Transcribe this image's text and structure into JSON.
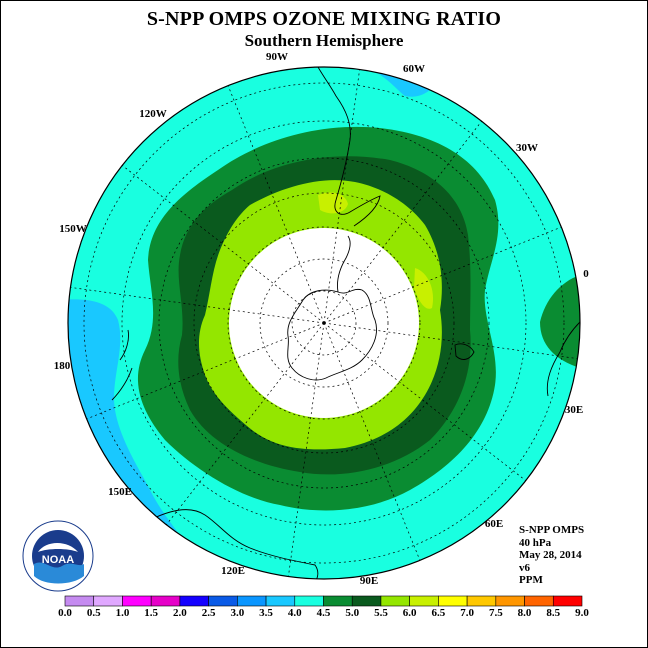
{
  "title": "S-NPP OMPS OZONE MIXING RATIO",
  "subtitle": "Southern Hemisphere",
  "logo": {
    "text": "NOAA",
    "icon": "noaa-seal-icon"
  },
  "info": {
    "instrument": "S-NPP OMPS",
    "level": "40 hPa",
    "date": "May 28, 2014",
    "version": "v6",
    "units": "PPM"
  },
  "lon_labels": [
    "0",
    "30E",
    "60E",
    "90E",
    "120E",
    "150E",
    "180",
    "150W",
    "120W",
    "90W",
    "60W",
    "30W"
  ],
  "colorbar": {
    "ticks": [
      "0.0",
      "0.5",
      "1.0",
      "1.5",
      "2.0",
      "2.5",
      "3.0",
      "3.5",
      "4.0",
      "4.5",
      "5.0",
      "5.5",
      "6.0",
      "6.5",
      "7.0",
      "7.5",
      "8.0",
      "8.5",
      "9.0"
    ],
    "colors": [
      "#c58bf0",
      "#e0a8ff",
      "#ff00ff",
      "#e600c8",
      "#1400ff",
      "#0a5ae6",
      "#0a96ff",
      "#19c8ff",
      "#19ffe0",
      "#0a8c32",
      "#0a5a1e",
      "#94e600",
      "#c8f000",
      "#ffff00",
      "#ffc800",
      "#ff9600",
      "#ff6400",
      "#ff0000",
      "#b45a32"
    ]
  },
  "map": {
    "background": "#19ffe0",
    "polar_night": "#ffffff",
    "levels": [
      "3.5-4.0",
      "4.0-4.5",
      "4.5-5.0",
      "5.0-5.5",
      "5.5-6.0"
    ],
    "level_colors": [
      "#19c8ff",
      "#0a8c32",
      "#0a5a1e",
      "#94e600",
      "#c8f000"
    ]
  }
}
